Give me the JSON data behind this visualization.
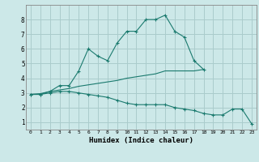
{
  "xlabel": "Humidex (Indice chaleur)",
  "ylabel": "",
  "bg_color": "#cce8e8",
  "grid_color": "#aacccc",
  "line_color": "#1a7a6e",
  "xlim": [
    -0.5,
    23.5
  ],
  "ylim": [
    0.5,
    9.0
  ],
  "yticks": [
    1,
    2,
    3,
    4,
    5,
    6,
    7,
    8
  ],
  "xticks": [
    0,
    1,
    2,
    3,
    4,
    5,
    6,
    7,
    8,
    9,
    10,
    11,
    12,
    13,
    14,
    15,
    16,
    17,
    18,
    19,
    20,
    21,
    22,
    23
  ],
  "line1_x": [
    0,
    1,
    2,
    3,
    4,
    5,
    6,
    7,
    8,
    9,
    10,
    11,
    12,
    13,
    14,
    15,
    16,
    17,
    18
  ],
  "line1_y": [
    2.9,
    2.9,
    3.1,
    3.5,
    3.5,
    4.5,
    6.0,
    5.5,
    5.2,
    6.4,
    7.2,
    7.2,
    8.0,
    8.0,
    8.3,
    7.2,
    6.8,
    5.2,
    4.6
  ],
  "line2_x": [
    0,
    1,
    2,
    3,
    4,
    5,
    6,
    7,
    8,
    9,
    10,
    11,
    12,
    13,
    14,
    15,
    16,
    17,
    18
  ],
  "line2_y": [
    2.9,
    2.95,
    3.1,
    3.2,
    3.3,
    3.45,
    3.55,
    3.65,
    3.75,
    3.85,
    4.0,
    4.1,
    4.2,
    4.3,
    4.5,
    4.5,
    4.5,
    4.5,
    4.6
  ],
  "line3_x": [
    0,
    1,
    2,
    3,
    4,
    5,
    6,
    7,
    8,
    9,
    10,
    11,
    12,
    13,
    14,
    15,
    16,
    17,
    18,
    19,
    20,
    21,
    22,
    23
  ],
  "line3_y": [
    2.9,
    2.9,
    3.0,
    3.1,
    3.1,
    3.0,
    2.9,
    2.8,
    2.7,
    2.5,
    2.3,
    2.2,
    2.2,
    2.2,
    2.2,
    2.0,
    1.9,
    1.8,
    1.6,
    1.5,
    1.5,
    1.9,
    1.9,
    0.9
  ]
}
